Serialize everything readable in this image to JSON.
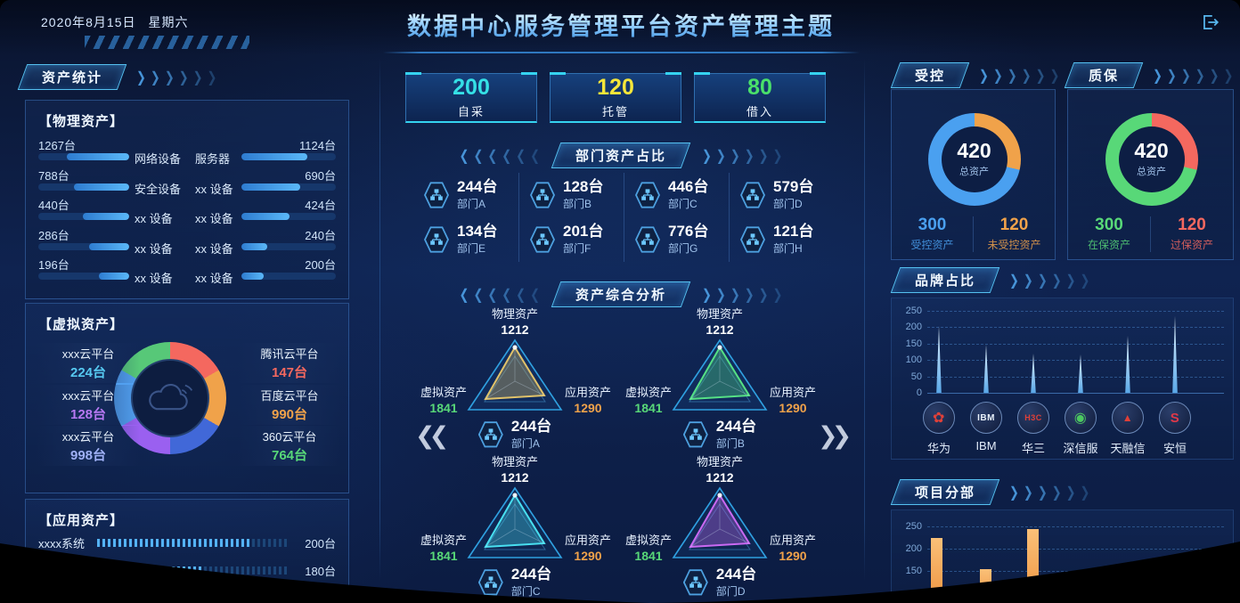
{
  "header": {
    "date": "2020年8月15日",
    "weekday": "星期六",
    "title": "数据中心服务管理平台资产管理主题",
    "logout_icon": "logout-icon"
  },
  "left": {
    "panel_title": "资产统计",
    "physical": {
      "title": "【物理资产】",
      "rows": [
        {
          "left": {
            "value": "1267台",
            "label": "网络设备",
            "pct": 69
          },
          "right": {
            "label": "服务器",
            "value": "1124台",
            "pct": 70
          }
        },
        {
          "left": {
            "value": "788台",
            "label": "安全设备",
            "pct": 61
          },
          "right": {
            "label": "xx 设备",
            "value": "690台",
            "pct": 62
          }
        },
        {
          "left": {
            "value": "440台",
            "label": "xx 设备",
            "pct": 51
          },
          "right": {
            "label": "xx 设备",
            "value": "424台",
            "pct": 51
          }
        },
        {
          "left": {
            "value": "286台",
            "label": "xx 设备",
            "pct": 44
          },
          "right": {
            "label": "xx 设备",
            "value": "240台",
            "pct": 27
          }
        },
        {
          "left": {
            "value": "196台",
            "label": "xx 设备",
            "pct": 33
          },
          "right": {
            "label": "xx 设备",
            "value": "200台",
            "pct": 24
          }
        }
      ]
    },
    "virtual": {
      "title": "【虚拟资产】",
      "left_items": [
        {
          "label": "xxx云平台",
          "value": "224台",
          "color": "#56c8f0"
        },
        {
          "label": "xxx云平台",
          "value": "128台",
          "color": "#b678f2"
        },
        {
          "label": "xxx云平台",
          "value": "998台",
          "color": "#9fb0f5"
        }
      ],
      "right_items": [
        {
          "label": "腾讯云平台",
          "value": "147台",
          "color": "#f4685f"
        },
        {
          "label": "百度云平台",
          "value": "990台",
          "color": "#f0a24a"
        },
        {
          "label": "360云平台",
          "value": "764台",
          "color": "#58d878"
        }
      ],
      "donut_colors": [
        "#f4685f",
        "#f0a24a",
        "#4168d8",
        "#9a60f0",
        "#52a0f0",
        "#57c878"
      ],
      "cloud_icon": "cloud-icon"
    },
    "application": {
      "title": "【应用资产】",
      "rows": [
        {
          "label": "xxxx系统",
          "value": "200台",
          "pct": 80
        },
        {
          "label": "",
          "value": "180台",
          "pct": 55
        },
        {
          "label": "",
          "value": "",
          "pct": 45
        }
      ]
    }
  },
  "center": {
    "stats": [
      {
        "value": "200",
        "label": "自采",
        "color": "#35e0e6"
      },
      {
        "value": "120",
        "label": "托管",
        "color": "#f5e63a"
      },
      {
        "value": "80",
        "label": "借入",
        "color": "#4ae06a"
      }
    ],
    "dept_section": {
      "title": "部门资产占比"
    },
    "departments": [
      {
        "value": "244台",
        "name": "部门A"
      },
      {
        "value": "128台",
        "name": "部门B"
      },
      {
        "value": "446台",
        "name": "部门C"
      },
      {
        "value": "579台",
        "name": "部门D"
      },
      {
        "value": "134台",
        "name": "部门E"
      },
      {
        "value": "201台",
        "name": "部门F"
      },
      {
        "value": "776台",
        "name": "部门G"
      },
      {
        "value": "121台",
        "name": "部门H"
      }
    ],
    "analysis_section": {
      "title": "资产综合分析"
    },
    "radar_axes": {
      "top": "物理资产",
      "left": "虚拟资产",
      "right": "应用资产"
    },
    "left_value_color": "#58d878",
    "right_value_color": "#f0a24a",
    "radars": [
      {
        "top_value": "1212",
        "left_value": "1841",
        "right_value": "1290",
        "dept_value": "244台",
        "dept_name": "部门A",
        "color": "#e0c26a"
      },
      {
        "top_value": "1212",
        "left_value": "1841",
        "right_value": "1290",
        "dept_value": "244台",
        "dept_name": "部门B",
        "color": "#55e085"
      },
      {
        "top_value": "1212",
        "left_value": "1841",
        "right_value": "1290",
        "dept_value": "244台",
        "dept_name": "部门C",
        "color": "#48dff0"
      },
      {
        "top_value": "1212",
        "left_value": "1841",
        "right_value": "1290",
        "dept_value": "244台",
        "dept_name": "部门D",
        "color": "#c969f2"
      }
    ],
    "carousel": {
      "prev": "❮❮",
      "next": "❯❯"
    }
  },
  "right": {
    "controlled": {
      "title": "受控",
      "total_value": "420",
      "total_label": "总资产",
      "ring": [
        {
          "value": "300",
          "label": "受控资产",
          "color": "#4aa0f0"
        },
        {
          "value": "120",
          "label": "未受控资产",
          "color": "#f0a24a"
        }
      ]
    },
    "warranty": {
      "title": "质保",
      "total_value": "420",
      "total_label": "总资产",
      "ring": [
        {
          "value": "300",
          "label": "在保资产",
          "color": "#58d878"
        },
        {
          "value": "120",
          "label": "过保资产",
          "color": "#f4685f"
        }
      ]
    },
    "brand": {
      "title": "品牌占比",
      "ymax": 250,
      "yticks": [
        "250",
        "200",
        "150",
        "100",
        "50",
        "0"
      ],
      "items": [
        {
          "name": "华为",
          "value": 205,
          "logo_text": "✿",
          "logo_color": "#e04038",
          "logo_size": 16
        },
        {
          "name": "IBM",
          "value": 148,
          "logo_text": "IBM",
          "logo_color": "#e8f0fa",
          "logo_size": 10
        },
        {
          "name": "华三",
          "value": 120,
          "logo_text": "H3C",
          "logo_color": "#e04038",
          "logo_size": 9
        },
        {
          "name": "深信服",
          "value": 118,
          "logo_text": "◉",
          "logo_color": "#4cc860",
          "logo_size": 16
        },
        {
          "name": "天融信",
          "value": 175,
          "logo_text": "▲",
          "logo_color": "#e04038",
          "logo_size": 12
        },
        {
          "name": "安恒",
          "value": 235,
          "logo_text": "S",
          "logo_color": "#e03848",
          "logo_size": 15
        }
      ]
    },
    "project": {
      "title": "项目分部",
      "ymax": 250,
      "yticks": [
        "250",
        "200",
        "150"
      ],
      "bars": [
        225,
        155,
        245
      ]
    }
  }
}
